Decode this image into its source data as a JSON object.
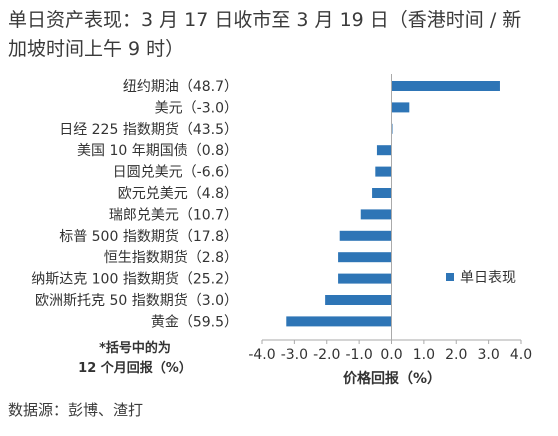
{
  "title": {
    "line1": "单日资产表现：3 月 17 日收市至 3 月 19 日（香港时间 / 新",
    "line2": "加坡时间上午 9 时）"
  },
  "note": {
    "line1": "*括号中的为",
    "line2": "12 个月回报（%）"
  },
  "source": "数据源：彭博、渣打",
  "colors": {
    "bar": "#2e75b6",
    "text": "#333333",
    "axis": "#aaaaaa"
  },
  "chart_data": {
    "type": "bar",
    "orientation": "horizontal",
    "categories": [
      "纽约期油（48.7）",
      "美元（-3.0）",
      "日经 225 指数期货（43.5）",
      "美国 10 年期国债（0.8）",
      "日圆兑美元（-6.6）",
      "欧元兑美元（4.8）",
      "瑞郎兑美元（10.7）",
      "标普 500 指数期货（17.8）",
      "恒生指数期货（2.8）",
      "纳斯达克 100 指数期货（25.2）",
      "欧洲斯托克 50 指数期货（3.0）",
      "黄金（59.5）"
    ],
    "series": [
      {
        "name": "单日表现",
        "values": [
          3.35,
          0.55,
          0.03,
          -0.45,
          -0.5,
          -0.6,
          -0.95,
          -1.6,
          -1.65,
          -1.65,
          -2.05,
          -3.25
        ]
      }
    ],
    "xlabel": "价格回报（%）",
    "xlim": [
      -4.0,
      4.0
    ],
    "xticks": [
      "-4.0",
      "-3.0",
      "-2.0",
      "-1.0",
      "0.0",
      "1.0",
      "2.0",
      "3.0",
      "4.0"
    ],
    "legend_position": "right",
    "grid": false
  }
}
